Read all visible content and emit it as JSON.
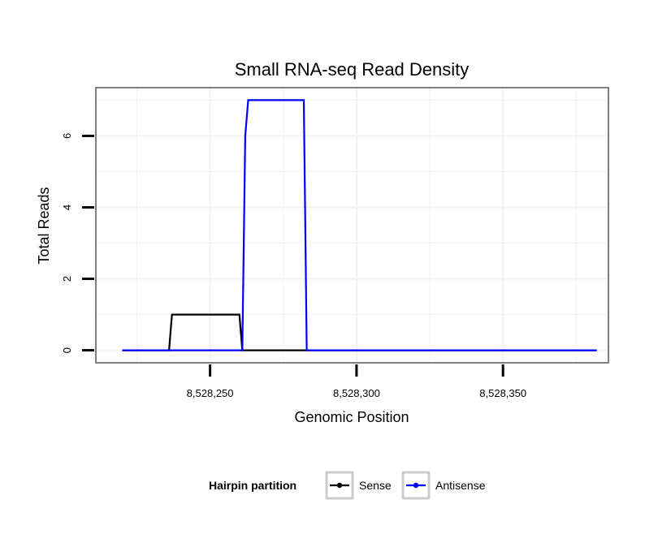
{
  "chart_data": {
    "type": "line",
    "title": "Small RNA-seq Read Density",
    "xlabel": "Genomic Position",
    "ylabel": "Total Reads",
    "xlim": [
      8528211,
      8528386
    ],
    "ylim": [
      -0.35,
      7.35
    ],
    "x_ticks": [
      {
        "value": 8528250,
        "label": "8,528,250"
      },
      {
        "value": 8528300,
        "label": "8,528,300"
      },
      {
        "value": 8528350,
        "label": "8,528,350"
      }
    ],
    "y_ticks": [
      {
        "value": 0,
        "label": "0"
      },
      {
        "value": 2,
        "label": "2"
      },
      {
        "value": 4,
        "label": "4"
      },
      {
        "value": 6,
        "label": "6"
      }
    ],
    "grid": true,
    "legend": {
      "title": "Hairpin partition",
      "position": "bottom",
      "entries": [
        {
          "name": "Sense",
          "color": "#000000"
        },
        {
          "name": "Antisense",
          "color": "#0000ff"
        }
      ]
    },
    "series": [
      {
        "name": "Sense",
        "color": "#000000",
        "x": [
          8528220,
          8528236,
          8528237,
          8528260,
          8528261,
          8528382
        ],
        "y": [
          0,
          0,
          1,
          1,
          0,
          0
        ]
      },
      {
        "name": "Antisense",
        "color": "#0000ff",
        "x": [
          8528220,
          8528261,
          8528262,
          8528263,
          8528282,
          8528283,
          8528382
        ],
        "y": [
          0,
          0,
          6,
          7,
          7,
          0,
          0
        ]
      }
    ]
  }
}
